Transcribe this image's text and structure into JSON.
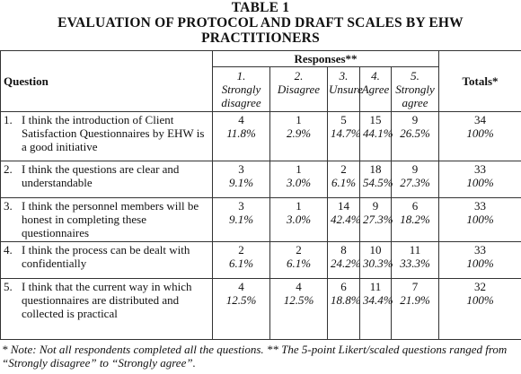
{
  "header": {
    "label": "TABLE 1",
    "title": "EVALUATION OF PROTOCOL AND DRAFT SCALES BY EHW PRACTITIONERS"
  },
  "table": {
    "question_header": "Question",
    "responses_header": "Responses**",
    "totals_header": "Totals*",
    "responses": [
      {
        "number": "1.",
        "label": "Strongly disagree"
      },
      {
        "number": "2.",
        "label": "Disagree"
      },
      {
        "number": "3.",
        "label": "Unsure"
      },
      {
        "number": "4.",
        "label": "Agree"
      },
      {
        "number": "5.",
        "label": "Strongly agree"
      }
    ],
    "rows": [
      {
        "number": "1.",
        "question": "I think the introduction of Client Satisfaction Questionnaires by EHW is a good initiative",
        "counts": [
          4,
          1,
          5,
          15,
          9
        ],
        "percents": [
          "11.8%",
          "2.9%",
          "14.7%",
          "44.1%",
          "26.5%"
        ],
        "total": 34,
        "total_percent": "100%"
      },
      {
        "number": "2.",
        "question": "I think the questions are clear and understandable",
        "counts": [
          3,
          1,
          2,
          18,
          9
        ],
        "percents": [
          "9.1%",
          "3.0%",
          "6.1%",
          "54.5%",
          "27.3%"
        ],
        "total": 33,
        "total_percent": "100%"
      },
      {
        "number": "3.",
        "question": "I think the personnel members will be honest in completing these questionnaires",
        "counts": [
          3,
          1,
          14,
          9,
          6
        ],
        "percents": [
          "9.1%",
          "3.0%",
          "42.4%",
          "27.3%",
          "18.2%"
        ],
        "total": 33,
        "total_percent": "100%"
      },
      {
        "number": "4.",
        "question": "I think the process can be dealt with confidentially",
        "counts": [
          2,
          2,
          8,
          10,
          11
        ],
        "percents": [
          "6.1%",
          "6.1%",
          "24.2%",
          "30.3%",
          "33.3%"
        ],
        "total": 33,
        "total_percent": "100%"
      },
      {
        "number": "5.",
        "question": "I think that the current way in which questionnaires are distributed and collected is practical",
        "counts": [
          4,
          4,
          6,
          11,
          7
        ],
        "percents": [
          "12.5%",
          "12.5%",
          "18.8%",
          "34.4%",
          "21.9%"
        ],
        "total": 32,
        "total_percent": "100%"
      }
    ]
  },
  "note": "* Note: Not all respondents completed all the questions. ** The 5-point Likert/scaled questions ranged from “Strongly disagree” to “Strongly agree”."
}
